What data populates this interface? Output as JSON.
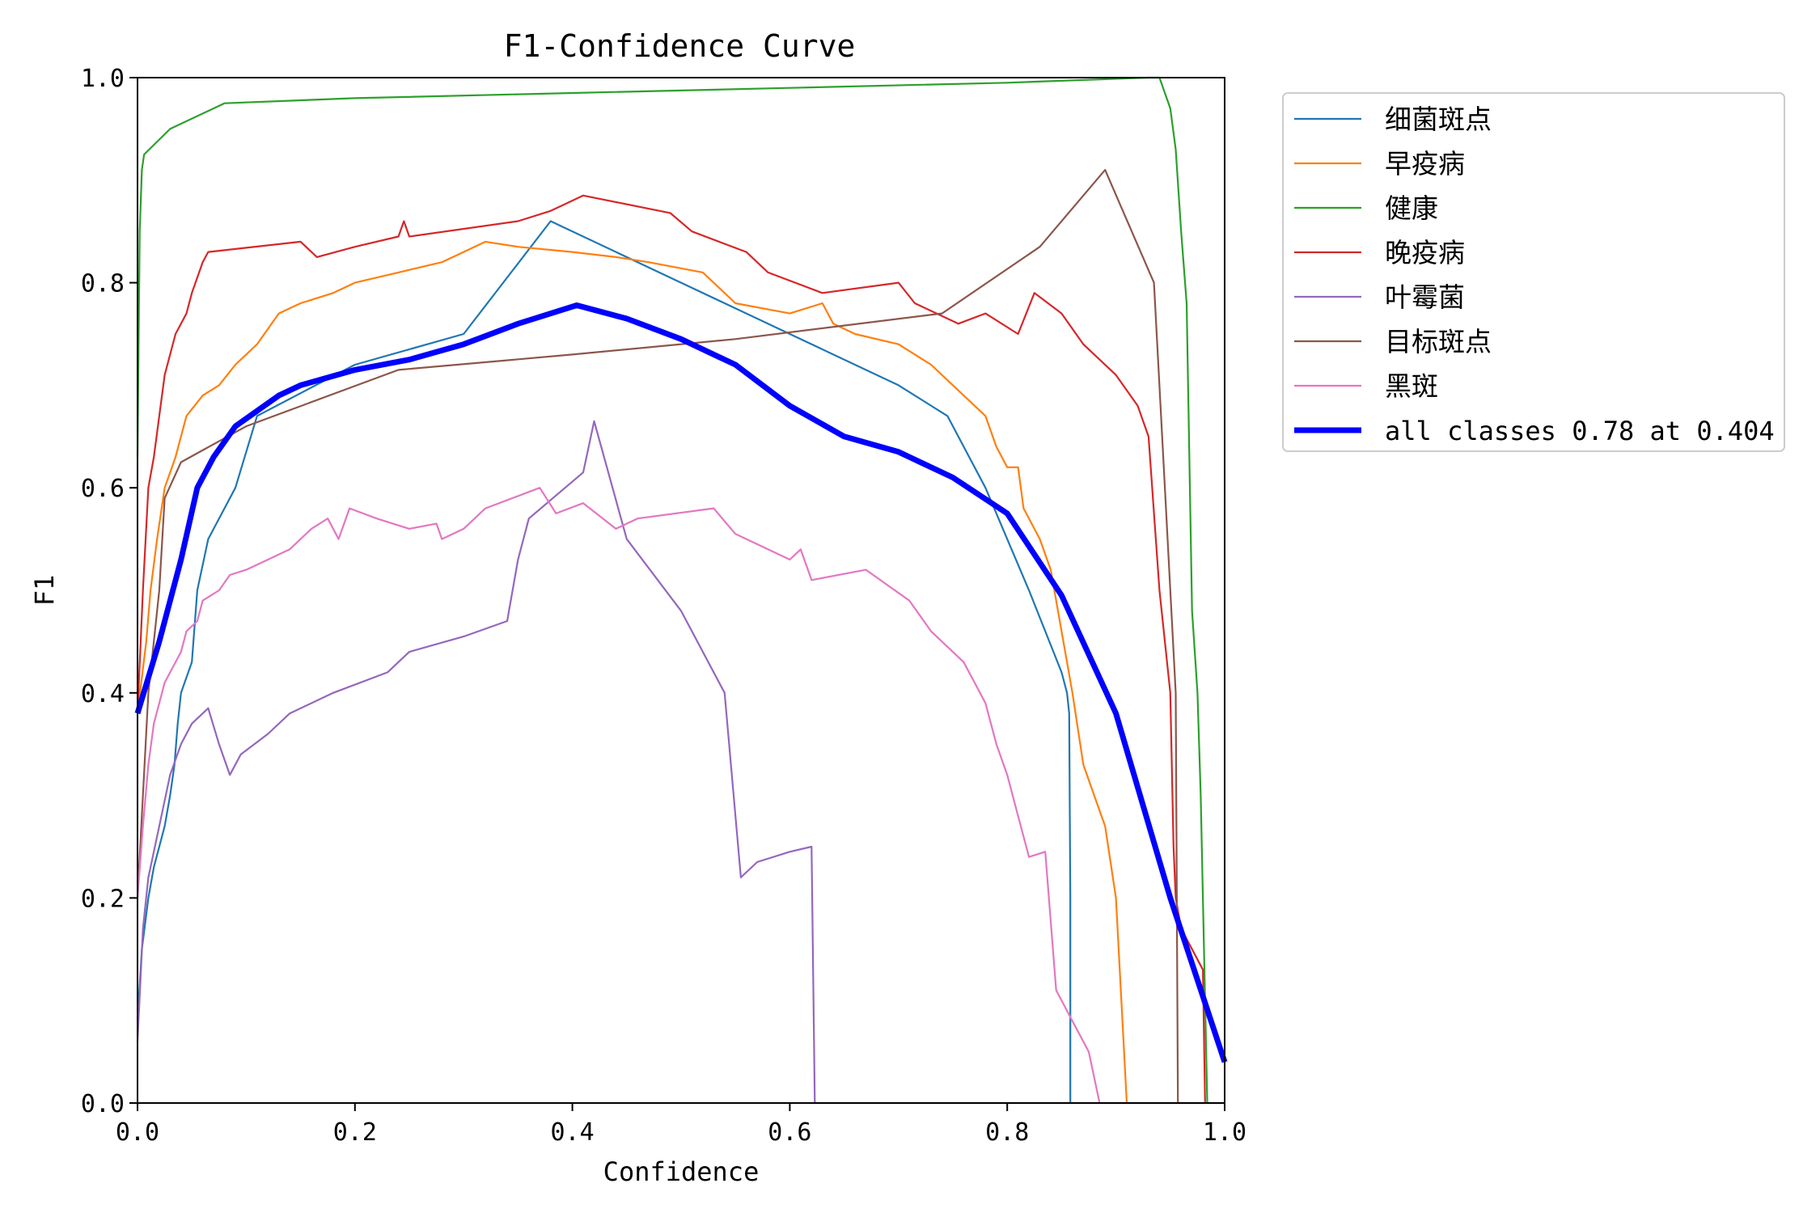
{
  "chart_data": {
    "type": "line",
    "title": "F1-Confidence Curve",
    "xlabel": "Confidence",
    "ylabel": "F1",
    "xlim": [
      0,
      1
    ],
    "ylim": [
      0,
      1
    ],
    "xticks": [
      "0.0",
      "0.2",
      "0.4",
      "0.6",
      "0.8",
      "1.0"
    ],
    "yticks": [
      "0.0",
      "0.2",
      "0.4",
      "0.6",
      "0.8",
      "1.0"
    ],
    "grid": false,
    "legend_position": "outside-top-right",
    "series": [
      {
        "name": "细菌斑点",
        "color": "#1f77b4",
        "width": 2.2,
        "points": [
          [
            0,
            0.08
          ],
          [
            0.004,
            0.15
          ],
          [
            0.01,
            0.2
          ],
          [
            0.015,
            0.23
          ],
          [
            0.02,
            0.25
          ],
          [
            0.025,
            0.27
          ],
          [
            0.03,
            0.3
          ],
          [
            0.034,
            0.33
          ],
          [
            0.037,
            0.37
          ],
          [
            0.04,
            0.4
          ],
          [
            0.05,
            0.43
          ],
          [
            0.055,
            0.5
          ],
          [
            0.065,
            0.55
          ],
          [
            0.09,
            0.6
          ],
          [
            0.11,
            0.67
          ],
          [
            0.2,
            0.72
          ],
          [
            0.3,
            0.75
          ],
          [
            0.38,
            0.86
          ],
          [
            0.5,
            0.8
          ],
          [
            0.6,
            0.75
          ],
          [
            0.7,
            0.7
          ],
          [
            0.745,
            0.67
          ],
          [
            0.78,
            0.6
          ],
          [
            0.82,
            0.5
          ],
          [
            0.85,
            0.42
          ],
          [
            0.855,
            0.4
          ],
          [
            0.857,
            0.38
          ],
          [
            0.858,
            0.2
          ],
          [
            0.858,
            0
          ]
        ]
      },
      {
        "name": "早疫病",
        "color": "#ff7f0e",
        "width": 2.2,
        "points": [
          [
            0,
            0.38
          ],
          [
            0.008,
            0.45
          ],
          [
            0.012,
            0.5
          ],
          [
            0.018,
            0.55
          ],
          [
            0.025,
            0.6
          ],
          [
            0.035,
            0.63
          ],
          [
            0.045,
            0.67
          ],
          [
            0.06,
            0.69
          ],
          [
            0.075,
            0.7
          ],
          [
            0.09,
            0.72
          ],
          [
            0.11,
            0.74
          ],
          [
            0.13,
            0.77
          ],
          [
            0.15,
            0.78
          ],
          [
            0.18,
            0.79
          ],
          [
            0.2,
            0.8
          ],
          [
            0.24,
            0.81
          ],
          [
            0.28,
            0.82
          ],
          [
            0.3,
            0.83
          ],
          [
            0.32,
            0.84
          ],
          [
            0.35,
            0.835
          ],
          [
            0.4,
            0.83
          ],
          [
            0.44,
            0.825
          ],
          [
            0.47,
            0.82
          ],
          [
            0.52,
            0.81
          ],
          [
            0.55,
            0.78
          ],
          [
            0.6,
            0.77
          ],
          [
            0.63,
            0.78
          ],
          [
            0.64,
            0.76
          ],
          [
            0.66,
            0.75
          ],
          [
            0.7,
            0.74
          ],
          [
            0.73,
            0.72
          ],
          [
            0.75,
            0.7
          ],
          [
            0.78,
            0.67
          ],
          [
            0.79,
            0.64
          ],
          [
            0.8,
            0.62
          ],
          [
            0.81,
            0.62
          ],
          [
            0.815,
            0.58
          ],
          [
            0.83,
            0.55
          ],
          [
            0.84,
            0.52
          ],
          [
            0.86,
            0.4
          ],
          [
            0.87,
            0.33
          ],
          [
            0.88,
            0.3
          ],
          [
            0.89,
            0.27
          ],
          [
            0.9,
            0.2
          ],
          [
            0.905,
            0.1
          ],
          [
            0.91,
            0
          ]
        ]
      },
      {
        "name": "健康",
        "color": "#2ca02c",
        "width": 2.2,
        "points": [
          [
            0,
            0.63
          ],
          [
            0.002,
            0.85
          ],
          [
            0.004,
            0.91
          ],
          [
            0.006,
            0.925
          ],
          [
            0.03,
            0.95
          ],
          [
            0.08,
            0.975
          ],
          [
            0.2,
            0.98
          ],
          [
            0.4,
            0.985
          ],
          [
            0.6,
            0.99
          ],
          [
            0.8,
            0.995
          ],
          [
            0.93,
            1.0
          ],
          [
            0.94,
            1.0
          ],
          [
            0.95,
            0.97
          ],
          [
            0.955,
            0.93
          ],
          [
            0.96,
            0.85
          ],
          [
            0.965,
            0.78
          ],
          [
            0.97,
            0.48
          ],
          [
            0.975,
            0.4
          ],
          [
            0.978,
            0.3
          ],
          [
            0.98,
            0.2
          ],
          [
            0.982,
            0.1
          ],
          [
            0.984,
            0
          ]
        ]
      },
      {
        "name": "晚疫病",
        "color": "#d62728",
        "width": 2.2,
        "points": [
          [
            0,
            0.38
          ],
          [
            0.005,
            0.5
          ],
          [
            0.01,
            0.6
          ],
          [
            0.015,
            0.63
          ],
          [
            0.02,
            0.67
          ],
          [
            0.025,
            0.71
          ],
          [
            0.03,
            0.73
          ],
          [
            0.035,
            0.75
          ],
          [
            0.045,
            0.77
          ],
          [
            0.05,
            0.79
          ],
          [
            0.06,
            0.82
          ],
          [
            0.065,
            0.83
          ],
          [
            0.15,
            0.84
          ],
          [
            0.165,
            0.825
          ],
          [
            0.2,
            0.835
          ],
          [
            0.24,
            0.845
          ],
          [
            0.245,
            0.86
          ],
          [
            0.25,
            0.845
          ],
          [
            0.35,
            0.86
          ],
          [
            0.38,
            0.87
          ],
          [
            0.41,
            0.885
          ],
          [
            0.49,
            0.868
          ],
          [
            0.51,
            0.85
          ],
          [
            0.56,
            0.83
          ],
          [
            0.58,
            0.81
          ],
          [
            0.63,
            0.79
          ],
          [
            0.7,
            0.8
          ],
          [
            0.715,
            0.78
          ],
          [
            0.755,
            0.76
          ],
          [
            0.78,
            0.77
          ],
          [
            0.81,
            0.75
          ],
          [
            0.825,
            0.79
          ],
          [
            0.85,
            0.77
          ],
          [
            0.87,
            0.74
          ],
          [
            0.9,
            0.71
          ],
          [
            0.92,
            0.68
          ],
          [
            0.93,
            0.65
          ],
          [
            0.94,
            0.5
          ],
          [
            0.95,
            0.4
          ],
          [
            0.953,
            0.25
          ],
          [
            0.955,
            0.2
          ],
          [
            0.96,
            0.17
          ],
          [
            0.97,
            0.15
          ],
          [
            0.98,
            0.13
          ],
          [
            0.982,
            0
          ]
        ]
      },
      {
        "name": "叶霉菌",
        "color": "#9467bd",
        "width": 2.2,
        "points": [
          [
            0,
            0.06
          ],
          [
            0.005,
            0.17
          ],
          [
            0.01,
            0.22
          ],
          [
            0.02,
            0.27
          ],
          [
            0.03,
            0.32
          ],
          [
            0.04,
            0.35
          ],
          [
            0.05,
            0.37
          ],
          [
            0.065,
            0.385
          ],
          [
            0.075,
            0.35
          ],
          [
            0.085,
            0.32
          ],
          [
            0.095,
            0.34
          ],
          [
            0.12,
            0.36
          ],
          [
            0.14,
            0.38
          ],
          [
            0.18,
            0.4
          ],
          [
            0.23,
            0.42
          ],
          [
            0.25,
            0.44
          ],
          [
            0.3,
            0.455
          ],
          [
            0.34,
            0.47
          ],
          [
            0.35,
            0.53
          ],
          [
            0.36,
            0.57
          ],
          [
            0.41,
            0.615
          ],
          [
            0.42,
            0.665
          ],
          [
            0.45,
            0.55
          ],
          [
            0.5,
            0.48
          ],
          [
            0.54,
            0.4
          ],
          [
            0.555,
            0.22
          ],
          [
            0.57,
            0.235
          ],
          [
            0.6,
            0.245
          ],
          [
            0.62,
            0.25
          ],
          [
            0.623,
            0
          ],
          [
            1.0,
            0
          ]
        ]
      },
      {
        "name": "目标斑点",
        "color": "#8c564b",
        "width": 2.2,
        "points": [
          [
            0,
            0.2
          ],
          [
            0.01,
            0.4
          ],
          [
            0.015,
            0.45
          ],
          [
            0.02,
            0.5
          ],
          [
            0.025,
            0.59
          ],
          [
            0.04,
            0.625
          ],
          [
            0.1,
            0.66
          ],
          [
            0.24,
            0.715
          ],
          [
            0.4,
            0.73
          ],
          [
            0.55,
            0.745
          ],
          [
            0.74,
            0.77
          ],
          [
            0.83,
            0.835
          ],
          [
            0.89,
            0.91
          ],
          [
            0.935,
            0.8
          ],
          [
            0.945,
            0.6
          ],
          [
            0.95,
            0.5
          ],
          [
            0.955,
            0.4
          ],
          [
            0.957,
            0
          ]
        ]
      },
      {
        "name": "黑斑",
        "color": "#e377c2",
        "width": 2.2,
        "points": [
          [
            0,
            0.2
          ],
          [
            0.005,
            0.27
          ],
          [
            0.01,
            0.33
          ],
          [
            0.015,
            0.37
          ],
          [
            0.02,
            0.39
          ],
          [
            0.025,
            0.41
          ],
          [
            0.03,
            0.42
          ],
          [
            0.04,
            0.44
          ],
          [
            0.045,
            0.46
          ],
          [
            0.055,
            0.47
          ],
          [
            0.06,
            0.49
          ],
          [
            0.075,
            0.5
          ],
          [
            0.085,
            0.515
          ],
          [
            0.1,
            0.52
          ],
          [
            0.12,
            0.53
          ],
          [
            0.14,
            0.54
          ],
          [
            0.16,
            0.56
          ],
          [
            0.175,
            0.57
          ],
          [
            0.185,
            0.55
          ],
          [
            0.195,
            0.58
          ],
          [
            0.22,
            0.57
          ],
          [
            0.25,
            0.56
          ],
          [
            0.275,
            0.565
          ],
          [
            0.28,
            0.55
          ],
          [
            0.3,
            0.56
          ],
          [
            0.32,
            0.58
          ],
          [
            0.37,
            0.6
          ],
          [
            0.385,
            0.575
          ],
          [
            0.41,
            0.585
          ],
          [
            0.44,
            0.56
          ],
          [
            0.46,
            0.57
          ],
          [
            0.53,
            0.58
          ],
          [
            0.55,
            0.555
          ],
          [
            0.6,
            0.53
          ],
          [
            0.61,
            0.54
          ],
          [
            0.62,
            0.51
          ],
          [
            0.67,
            0.52
          ],
          [
            0.71,
            0.49
          ],
          [
            0.73,
            0.46
          ],
          [
            0.76,
            0.43
          ],
          [
            0.78,
            0.39
          ],
          [
            0.79,
            0.35
          ],
          [
            0.8,
            0.32
          ],
          [
            0.81,
            0.28
          ],
          [
            0.82,
            0.24
          ],
          [
            0.835,
            0.245
          ],
          [
            0.845,
            0.11
          ],
          [
            0.86,
            0.08
          ],
          [
            0.875,
            0.05
          ],
          [
            0.885,
            0
          ],
          [
            1.0,
            0
          ]
        ]
      },
      {
        "name": "all classes 0.78 at 0.404",
        "color": "#0000ff",
        "width": 7,
        "points": [
          [
            0,
            0.38
          ],
          [
            0.02,
            0.45
          ],
          [
            0.04,
            0.53
          ],
          [
            0.055,
            0.6
          ],
          [
            0.07,
            0.63
          ],
          [
            0.09,
            0.66
          ],
          [
            0.11,
            0.675
          ],
          [
            0.13,
            0.69
          ],
          [
            0.15,
            0.7
          ],
          [
            0.2,
            0.715
          ],
          [
            0.25,
            0.725
          ],
          [
            0.3,
            0.74
          ],
          [
            0.35,
            0.76
          ],
          [
            0.404,
            0.778
          ],
          [
            0.45,
            0.765
          ],
          [
            0.5,
            0.745
          ],
          [
            0.55,
            0.72
          ],
          [
            0.6,
            0.68
          ],
          [
            0.65,
            0.65
          ],
          [
            0.7,
            0.635
          ],
          [
            0.75,
            0.61
          ],
          [
            0.8,
            0.575
          ],
          [
            0.85,
            0.495
          ],
          [
            0.9,
            0.38
          ],
          [
            0.95,
            0.2
          ],
          [
            1.0,
            0.04
          ]
        ]
      }
    ]
  }
}
